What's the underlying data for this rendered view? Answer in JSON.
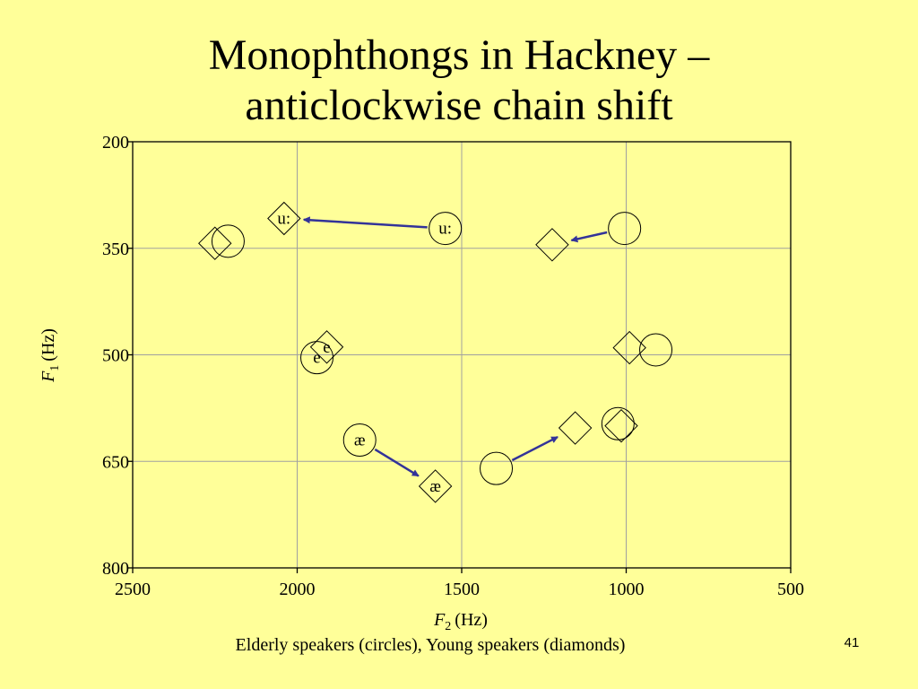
{
  "slide": {
    "title_line1": "Monophthongs in Hackney –",
    "title_line2": "anticlockwise chain shift",
    "caption": "Elderly speakers (circles), Young speakers (diamonds)",
    "slide_number": "41"
  },
  "chart_data": {
    "type": "scatter",
    "xlabel": "F2 (Hz)",
    "ylabel": "F1 (Hz)",
    "x_axis_letter": "F",
    "x_axis_subscript": "2",
    "x_axis_unit": "(Hz)",
    "y_axis_letter": "F",
    "y_axis_subscript": "1",
    "y_axis_unit": "(Hz)",
    "xlim": [
      2500,
      500
    ],
    "x_reversed": true,
    "ylim": [
      200,
      800
    ],
    "y_reversed": true,
    "x_ticks": [
      2500,
      2000,
      1500,
      1000,
      500
    ],
    "y_ticks": [
      200,
      350,
      500,
      650,
      800
    ],
    "grid": true,
    "colors": {
      "background": "#ffff99",
      "arrow": "#333399",
      "marker": "#000000",
      "grid": "#a0a0a0"
    },
    "series": [
      {
        "name": "Elderly speakers (circles)",
        "marker": "circle",
        "points": [
          {
            "label": "u:",
            "x": 1550,
            "y": 322
          },
          {
            "label": "",
            "x": 1005,
            "y": 322
          },
          {
            "label": "",
            "x": 2210,
            "y": 340
          },
          {
            "label": "e",
            "x": 1940,
            "y": 504
          },
          {
            "label": "",
            "x": 910,
            "y": 493
          },
          {
            "label": "",
            "x": 1025,
            "y": 597
          },
          {
            "label": "æ",
            "x": 1810,
            "y": 620
          },
          {
            "label": "",
            "x": 1395,
            "y": 660
          }
        ]
      },
      {
        "name": "Young speakers (diamonds)",
        "marker": "diamond",
        "points": [
          {
            "label": "u:",
            "x": 2040,
            "y": 308
          },
          {
            "label": "",
            "x": 1225,
            "y": 345
          },
          {
            "label": "",
            "x": 2250,
            "y": 343
          },
          {
            "label": "e",
            "x": 1910,
            "y": 489
          },
          {
            "label": "",
            "x": 990,
            "y": 490
          },
          {
            "label": "",
            "x": 1015,
            "y": 600
          },
          {
            "label": "",
            "x": 1155,
            "y": 603
          },
          {
            "label": "æ",
            "x": 1580,
            "y": 685
          }
        ]
      }
    ],
    "arrows": [
      {
        "from": [
          1550,
          322
        ],
        "to": [
          2040,
          308
        ]
      },
      {
        "from": [
          1005,
          322
        ],
        "to": [
          1225,
          345
        ]
      },
      {
        "from": [
          1810,
          620
        ],
        "to": [
          1580,
          685
        ]
      },
      {
        "from": [
          1395,
          660
        ],
        "to": [
          1155,
          603
        ]
      }
    ]
  }
}
